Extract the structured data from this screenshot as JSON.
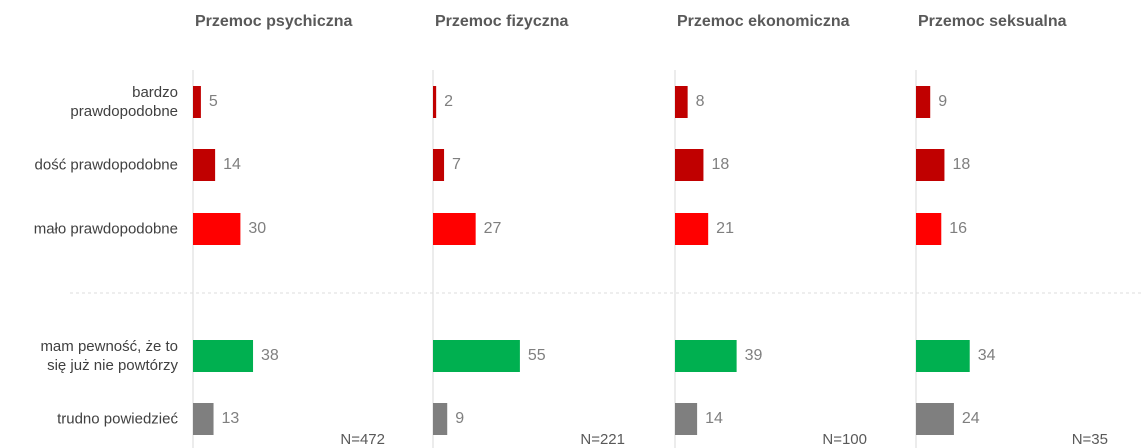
{
  "chart_data": {
    "type": "bar",
    "categories": [
      "bardzo\nprawdopodobne",
      "dość prawdopodobne",
      "mało prawdopodobne",
      "mam pewność, że to\nsię już nie powtórzy",
      "trudno powiedzieć"
    ],
    "colors": [
      "#c00000",
      "#c00000",
      "#ff0000",
      "#00b050",
      "#7f7f7f"
    ],
    "xlim": [
      0,
      100
    ],
    "series": [
      {
        "name": "Przemoc psychiczna",
        "values": [
          5,
          14,
          30,
          38,
          13
        ],
        "note": "N=472"
      },
      {
        "name": "Przemoc fizyczna",
        "values": [
          2,
          7,
          27,
          55,
          9
        ],
        "note": "N=221"
      },
      {
        "name": "Przemoc ekonomiczna",
        "values": [
          8,
          18,
          21,
          39,
          14
        ],
        "note": "N=100"
      },
      {
        "name": "Przemoc seksualna",
        "values": [
          9,
          18,
          16,
          34,
          24
        ],
        "note": "N=35"
      }
    ]
  }
}
